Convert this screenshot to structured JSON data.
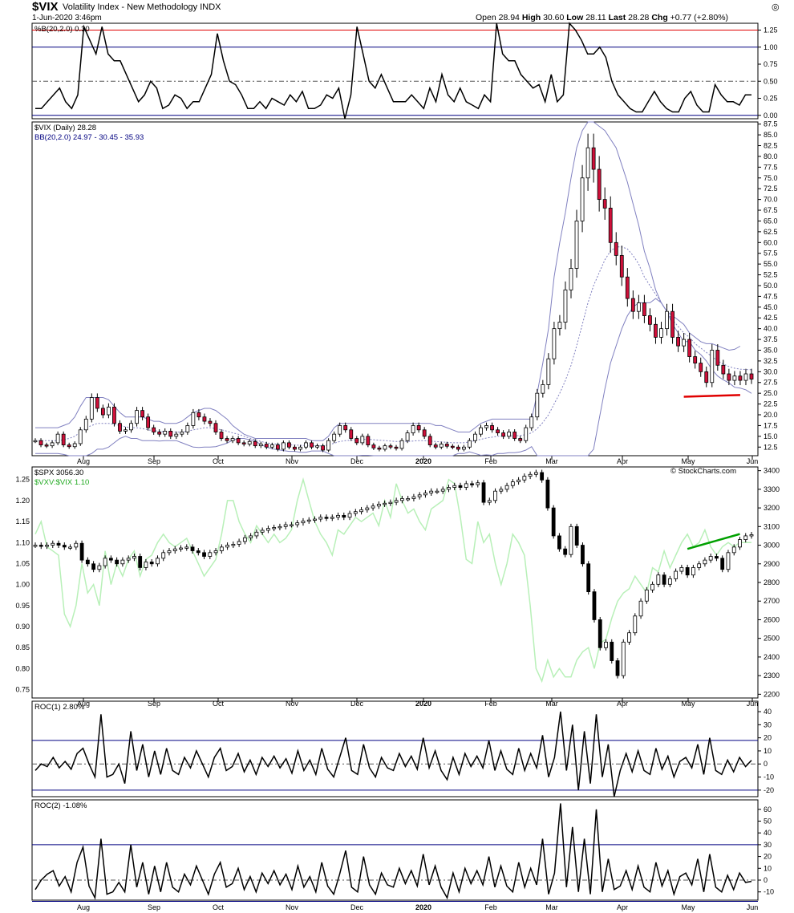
{
  "header": {
    "symbol": "$VIX",
    "description": "Volatility Index - New Methodology  INDX",
    "date": "1-Jun-2020 3:46pm",
    "open_label": "Open",
    "open": "28.94",
    "high_label": "High",
    "high": "30.60",
    "low_label": "Low",
    "low": "28.11",
    "last_label": "Last",
    "last": "28.28",
    "chg_label": "Chg",
    "chg": "+0.77 (+2.80%)",
    "watermark": "© StockCharts.com"
  },
  "colors": {
    "up": "#ffffff",
    "down": "#d0103a",
    "band": "#8080c0",
    "ratio": "#b8f0b8",
    "red_line": "#e00000",
    "green_line": "#00a000",
    "navy": "#000080"
  },
  "chart_data": [
    {
      "type": "line",
      "id": "pctb",
      "label": "%B(20,2.0) 0.30",
      "ylim": [
        -0.05,
        1.35
      ],
      "ticks": [
        "1.25",
        "1.00",
        "0.75",
        "0.50",
        "0.25",
        "0.00"
      ],
      "hlines": {
        "upper": 1.25,
        "mid": 1.0,
        "dash": 0.5,
        "lower": 0.0
      },
      "values": [
        0.1,
        0.1,
        0.2,
        0.3,
        0.4,
        0.2,
        0.1,
        0.3,
        1.3,
        1.1,
        0.9,
        1.3,
        0.9,
        0.8,
        0.8,
        0.6,
        0.4,
        0.2,
        0.3,
        0.5,
        0.4,
        0.1,
        0.15,
        0.3,
        0.25,
        0.1,
        0.2,
        0.2,
        0.4,
        0.6,
        1.2,
        0.8,
        0.5,
        0.45,
        0.3,
        0.1,
        0.1,
        0.2,
        0.1,
        0.25,
        0.2,
        0.15,
        0.3,
        0.2,
        0.35,
        0.1,
        0.1,
        0.15,
        0.3,
        0.25,
        0.4,
        -0.05,
        0.3,
        1.3,
        0.9,
        0.5,
        0.4,
        0.6,
        0.4,
        0.2,
        0.2,
        0.2,
        0.3,
        0.2,
        0.1,
        0.4,
        0.2,
        0.6,
        0.3,
        0.2,
        0.4,
        0.2,
        0.15,
        0.1,
        0.3,
        0.2,
        1.35,
        0.9,
        0.8,
        0.8,
        0.6,
        0.5,
        0.4,
        0.45,
        0.2,
        0.6,
        0.2,
        0.3,
        1.35,
        1.25,
        1.1,
        0.9,
        0.9,
        1.0,
        0.85,
        0.5,
        0.3,
        0.2,
        0.1,
        0.05,
        0.05,
        0.2,
        0.35,
        0.2,
        0.1,
        0.05,
        0.05,
        0.25,
        0.35,
        0.15,
        0.05,
        0.05,
        0.45,
        0.3,
        0.2,
        0.2,
        0.15,
        0.3,
        0.3
      ]
    },
    {
      "type": "candlestick",
      "id": "vix",
      "label": "$VIX (Daily) 28.28",
      "overlay_label": "BB(20,2.0) 24.97 - 30.45 - 35.93",
      "ylim": [
        10.5,
        88
      ],
      "ticks": [
        "87.5",
        "85.0",
        "82.5",
        "80.0",
        "77.5",
        "75.0",
        "72.5",
        "70.0",
        "67.5",
        "65.0",
        "62.5",
        "60.0",
        "57.5",
        "55.0",
        "52.5",
        "50.0",
        "47.5",
        "45.0",
        "42.5",
        "40.0",
        "37.5",
        "35.0",
        "32.5",
        "30.0",
        "27.5",
        "25.0",
        "22.5",
        "20.0",
        "17.5",
        "15.0",
        "12.5"
      ],
      "close": [
        14.0,
        13.0,
        12.8,
        13.5,
        15.5,
        13.0,
        12.6,
        13.3,
        16.5,
        19.0,
        24.0,
        21.5,
        20.0,
        21.8,
        18.0,
        16.2,
        16.5,
        18.0,
        21.0,
        19.5,
        17.0,
        16.0,
        15.5,
        16.2,
        15.0,
        15.5,
        16.0,
        17.5,
        20.5,
        19.5,
        18.5,
        18.0,
        16.0,
        14.5,
        14.0,
        14.5,
        13.5,
        13.2,
        13.8,
        12.8,
        13.2,
        12.5,
        13.0,
        12.0,
        13.5,
        12.5,
        12.0,
        12.5,
        13.5,
        12.5,
        12.8,
        11.8,
        14.0,
        15.5,
        17.5,
        16.5,
        14.5,
        13.5,
        15.0,
        13.0,
        12.3,
        12.0,
        12.8,
        12.5,
        12.2,
        14.0,
        15.8,
        17.5,
        16.5,
        15.0,
        13.0,
        12.5,
        13.2,
        12.7,
        12.5,
        12.0,
        12.5,
        14.0,
        15.5,
        17.0,
        17.5,
        16.5,
        15.8,
        15.0,
        16.0,
        14.5,
        14.0,
        17.0,
        19.5,
        25.0,
        27.0,
        33.0,
        40.0,
        41.5,
        49.0,
        54.0,
        65.0,
        75.0,
        82.0,
        77.0,
        70.0,
        68.0,
        60.0,
        57.0,
        52.0,
        47.0,
        44.0,
        46.0,
        43.0,
        41.0,
        38.0,
        40.0,
        44.0,
        38.0,
        36.0,
        37.5,
        33.5,
        32.0,
        30.0,
        27.5,
        35.0,
        31.5,
        29.5,
        28.0,
        29.0,
        28.0,
        29.5,
        28.28
      ],
      "bb_upper": [
        17.0,
        17.0,
        17.0,
        17.0,
        17.0,
        17.5,
        18.0,
        19.5,
        22.0,
        24.0,
        24.0,
        24.0,
        24.0,
        23.5,
        22.0,
        20.5,
        19.5,
        19.5,
        19.5,
        19.5,
        19.0,
        18.5,
        18.5,
        18.0,
        18.0,
        18.0,
        18.5,
        19.5,
        20.5,
        21.0,
        21.5,
        21.5,
        21.0,
        20.0,
        19.0,
        17.5,
        16.5,
        15.5,
        15.0,
        14.5,
        14.5,
        14.5,
        14.5,
        14.5,
        14.5,
        14.5,
        14.5,
        14.5,
        14.5,
        14.0,
        14.0,
        14.0,
        15.0,
        17.0,
        18.0,
        18.0,
        18.0,
        18.0,
        18.0,
        18.0,
        18.0,
        18.0,
        18.0,
        18.0,
        18.0,
        18.0,
        18.0,
        18.0,
        18.0,
        18.0,
        18.0,
        17.5,
        17.5,
        17.0,
        16.5,
        16.0,
        16.0,
        16.0,
        17.0,
        18.0,
        18.5,
        19.0,
        19.0,
        19.0,
        19.0,
        19.0,
        19.0,
        19.0,
        19.0,
        25.0,
        32.0,
        40.0,
        52.0,
        60.0,
        67.0,
        75.0,
        82.0,
        86.0,
        88.0,
        88.0,
        87.0,
        86.0,
        84.0,
        82.0,
        78.0,
        74.0,
        69.0,
        64.0,
        58.0,
        54.0,
        49.0,
        46.0,
        44.0,
        43.0,
        42.0,
        41.0,
        39.0,
        38.0,
        37.0,
        36.5,
        36.5,
        36.0,
        35.5,
        35.0,
        35.2,
        35.93
      ],
      "bb_mid": [
        14.0,
        14.0,
        14.0,
        14.0,
        14.0,
        14.2,
        14.5,
        15.0,
        16.0,
        17.0,
        17.5,
        18.0,
        18.0,
        18.0,
        17.8,
        17.5,
        17.2,
        17.0,
        17.0,
        16.8,
        16.5,
        16.3,
        16.2,
        16.0,
        16.0,
        16.0,
        16.0,
        16.2,
        16.5,
        16.7,
        17.0,
        17.0,
        16.8,
        16.5,
        16.2,
        15.8,
        15.5,
        15.0,
        14.6,
        14.2,
        13.8,
        13.5,
        13.3,
        13.2,
        13.1,
        13.0,
        13.0,
        12.9,
        12.9,
        12.8,
        12.8,
        12.8,
        13.0,
        13.4,
        13.8,
        14.0,
        14.1,
        14.2,
        14.3,
        14.3,
        14.2,
        14.1,
        14.0,
        13.9,
        13.8,
        13.8,
        13.8,
        13.9,
        14.0,
        14.0,
        13.9,
        13.8,
        13.7,
        13.6,
        13.5,
        13.5,
        13.5,
        13.7,
        14.0,
        14.3,
        14.6,
        14.8,
        15.0,
        15.0,
        15.1,
        15.1,
        15.2,
        15.4,
        15.8,
        16.8,
        18.2,
        20.0,
        22.5,
        25.0,
        28.0,
        31.5,
        36.0,
        41.0,
        46.0,
        50.0,
        53.0,
        56.0,
        58.0,
        59.0,
        59.0,
        58.5,
        57.0,
        55.0,
        52.0,
        50.0,
        48.0,
        46.0,
        44.0,
        42.0,
        40.5,
        39.0,
        38.0,
        36.5,
        35.5,
        34.5,
        33.5,
        32.5,
        31.8,
        31.2,
        30.8,
        30.6,
        30.5,
        30.45
      ],
      "bb_lower": [
        11.0,
        11.0,
        11.0,
        11.0,
        11.0,
        10.8,
        10.5,
        10.5,
        10.0,
        10.0,
        11.0,
        12.0,
        12.0,
        12.5,
        13.5,
        14.5,
        15.0,
        14.5,
        14.5,
        14.0,
        14.0,
        14.0,
        13.9,
        14.0,
        14.0,
        14.0,
        13.5,
        13.0,
        12.5,
        12.4,
        12.5,
        12.5,
        12.6,
        13.0,
        13.4,
        14.1,
        14.5,
        14.5,
        14.2,
        13.9,
        13.1,
        12.5,
        12.1,
        11.9,
        11.7,
        11.5,
        11.5,
        11.3,
        11.3,
        11.6,
        11.6,
        11.6,
        11.0,
        9.8,
        9.6,
        10.0,
        10.2,
        10.4,
        10.6,
        10.6,
        10.4,
        10.2,
        10.0,
        9.8,
        9.6,
        9.6,
        9.6,
        9.8,
        10.0,
        10.0,
        9.8,
        10.1,
        9.9,
        10.2,
        10.5,
        11.0,
        11.0,
        11.4,
        11.0,
        10.6,
        10.7,
        10.6,
        11.0,
        11.0,
        11.2,
        11.2,
        11.4,
        11.8,
        12.6,
        8.6,
        4.4,
        0.0,
        0.0,
        0.0,
        0.0,
        0.0,
        0.0,
        0.0,
        4.0,
        12.0,
        19.0,
        26.0,
        32.0,
        36.0,
        40.0,
        43.0,
        45.0,
        46.0,
        46.0,
        46.0,
        47.0,
        46.0,
        44.0,
        41.0,
        39.0,
        37.0,
        37.0,
        35.0,
        34.0,
        32.5,
        30.5,
        29.0,
        28.1,
        27.4,
        26.4,
        26.2,
        25.8,
        24.97
      ]
    },
    {
      "type": "candlestick",
      "id": "spx",
      "label": "$SPX 3056.30",
      "overlay_label": "$VXV:$VIX 1.10",
      "ylim": [
        2180,
        3420
      ],
      "ticks": [
        "3400",
        "3300",
        "3200",
        "3100",
        "3000",
        "2900",
        "2800",
        "2700",
        "2600",
        "2500",
        "2400",
        "2300",
        "2200"
      ],
      "ratio_ticks": [
        "1.25",
        "1.20",
        "1.15",
        "1.10",
        "1.05",
        "1.00",
        "0.95",
        "0.90",
        "0.85",
        "0.80",
        "0.75"
      ],
      "ratio_ylim": [
        0.73,
        1.28
      ],
      "close": [
        3000,
        2995,
        3000,
        3010,
        3000,
        2990,
        2990,
        3010,
        2920,
        2900,
        2870,
        2890,
        2930,
        2920,
        2900,
        2920,
        2930,
        2940,
        2880,
        2910,
        2900,
        2930,
        2960,
        2970,
        2980,
        2985,
        2990,
        2970,
        2960,
        2940,
        2960,
        2970,
        2990,
        3000,
        3005,
        3020,
        3040,
        3050,
        3070,
        3080,
        3090,
        3095,
        3100,
        3110,
        3110,
        3120,
        3130,
        3135,
        3140,
        3150,
        3145,
        3150,
        3160,
        3150,
        3170,
        3180,
        3190,
        3200,
        3210,
        3220,
        3225,
        3230,
        3240,
        3250,
        3250,
        3260,
        3270,
        3280,
        3290,
        3290,
        3300,
        3310,
        3320,
        3310,
        3330,
        3325,
        3335,
        3230,
        3240,
        3290,
        3300,
        3320,
        3340,
        3350,
        3370,
        3380,
        3390,
        3350,
        3200,
        3050,
        2980,
        2950,
        3100,
        3000,
        2900,
        2750,
        2600,
        2450,
        2480,
        2380,
        2300,
        2480,
        2530,
        2620,
        2700,
        2760,
        2790,
        2840,
        2790,
        2820,
        2860,
        2880,
        2840,
        2880,
        2900,
        2920,
        2940,
        2930,
        2870,
        2960,
        2990,
        3030,
        3050,
        3056.3
      ],
      "ratio": [
        1.12,
        1.15,
        1.09,
        1.08,
        1.07,
        0.93,
        0.9,
        0.95,
        1.05,
        0.98,
        1.0,
        0.95,
        1.08,
        1.0,
        1.05,
        1.02,
        1.06,
        1.08,
        1.02,
        1.06,
        1.07,
        1.1,
        1.12,
        1.1,
        1.09,
        1.1,
        1.11,
        1.08,
        1.05,
        1.02,
        1.04,
        1.06,
        1.12,
        1.2,
        1.2,
        1.15,
        1.12,
        1.1,
        1.14,
        1.12,
        1.1,
        1.12,
        1.1,
        1.11,
        1.13,
        1.2,
        1.25,
        1.2,
        1.15,
        1.12,
        1.1,
        1.07,
        1.13,
        1.12,
        1.14,
        1.16,
        1.15,
        1.16,
        1.17,
        1.14,
        1.2,
        1.16,
        1.24,
        1.2,
        1.17,
        1.18,
        1.15,
        1.13,
        1.18,
        1.19,
        1.2,
        1.25,
        1.24,
        1.16,
        1.06,
        1.05,
        1.15,
        1.1,
        1.12,
        1.05,
        1.0,
        1.05,
        1.12,
        1.1,
        1.07,
        0.95,
        0.8,
        0.77,
        0.82,
        0.78,
        0.8,
        0.78,
        0.78,
        0.82,
        0.84,
        0.85,
        0.8,
        0.86,
        0.87,
        0.92,
        0.96,
        0.98,
        0.99,
        1.02,
        1.0,
        0.98,
        1.04,
        1.03,
        1.08,
        1.04,
        1.07,
        1.1,
        1.12,
        1.09,
        1.1,
        1.13,
        1.09,
        1.07,
        1.09,
        1.1,
        1.09,
        1.1,
        1.1,
        1.1
      ]
    },
    {
      "type": "line",
      "id": "roc1",
      "label": "ROC(1) 2.80%",
      "ylim": [
        -25,
        48
      ],
      "ticks": [
        "40",
        "30",
        "20",
        "10",
        "0",
        "-10",
        "-20"
      ],
      "hlines": {
        "upper": 18,
        "dash": 0,
        "lower": -20
      },
      "values": [
        -5,
        0,
        -2,
        5,
        -3,
        2,
        -4,
        8,
        12,
        0,
        -10,
        38,
        -10,
        -8,
        0,
        -15,
        25,
        -5,
        15,
        -10,
        10,
        -8,
        12,
        -5,
        -8,
        5,
        -3,
        10,
        0,
        -10,
        5,
        12,
        -5,
        -2,
        8,
        -6,
        3,
        -8,
        5,
        -2,
        6,
        -3,
        4,
        -7,
        10,
        -5,
        3,
        -8,
        12,
        -4,
        -10,
        5,
        20,
        -5,
        -8,
        15,
        -3,
        -10,
        5,
        -3,
        -5,
        8,
        -2,
        6,
        -4,
        20,
        -3,
        10,
        -5,
        -12,
        5,
        -8,
        8,
        -2,
        6,
        -3,
        18,
        -5,
        10,
        -4,
        -8,
        12,
        -5,
        8,
        -3,
        22,
        -10,
        5,
        40,
        -5,
        30,
        -20,
        25,
        -15,
        38,
        -10,
        15,
        -25,
        -5,
        8,
        -6,
        10,
        -5,
        -8,
        12,
        -4,
        6,
        -10,
        2,
        5,
        -3,
        15,
        -8,
        20,
        -5,
        -8,
        3,
        -6,
        5,
        -2,
        2.8
      ]
    },
    {
      "type": "line",
      "id": "roc2",
      "label": "ROC(2) -1.08%",
      "ylim": [
        -17,
        68
      ],
      "ticks": [
        "60",
        "50",
        "40",
        "30",
        "20",
        "10",
        "0",
        "-10"
      ],
      "hlines": {
        "upper": 30,
        "dash": 0,
        "lower": -18
      },
      "values": [
        -8,
        0,
        5,
        8,
        -5,
        3,
        -10,
        15,
        28,
        -5,
        -15,
        35,
        -12,
        -10,
        -2,
        -10,
        30,
        -6,
        15,
        -12,
        12,
        -10,
        15,
        -6,
        -10,
        5,
        -4,
        12,
        0,
        -12,
        5,
        15,
        -6,
        -3,
        10,
        -8,
        3,
        -10,
        6,
        -3,
        8,
        -4,
        5,
        -8,
        12,
        -6,
        3,
        -10,
        15,
        -5,
        -12,
        5,
        25,
        -6,
        -10,
        20,
        -4,
        -12,
        6,
        -4,
        -6,
        10,
        -3,
        8,
        -5,
        22,
        -4,
        12,
        -6,
        -15,
        6,
        -10,
        10,
        -3,
        8,
        -4,
        20,
        -6,
        12,
        -5,
        -10,
        15,
        -6,
        10,
        -4,
        35,
        -12,
        6,
        65,
        -6,
        45,
        -10,
        35,
        -12,
        60,
        -10,
        18,
        -8,
        -5,
        8,
        -8,
        12,
        -6,
        -10,
        15,
        -5,
        8,
        -12,
        3,
        6,
        -4,
        18,
        -10,
        22,
        -6,
        -10,
        4,
        -8,
        6,
        -2,
        -1.08
      ]
    }
  ],
  "months": [
    "Aug",
    "Sep",
    "Oct",
    "Nov",
    "Dec",
    "2020",
    "Feb",
    "Mar",
    "Apr",
    "May",
    "Jun"
  ]
}
